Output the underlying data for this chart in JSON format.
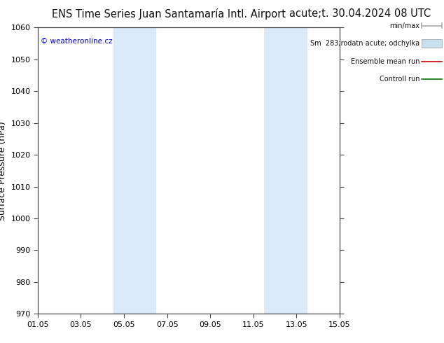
{
  "title_left": "ENS Time Series Juan Santamaría Intl. Airport",
  "title_right": "acute;t. 30.04.2024 08 UTC",
  "ylabel": "Surface Pressure (hPa)",
  "ylim": [
    970,
    1060
  ],
  "yticks": [
    970,
    980,
    990,
    1000,
    1010,
    1020,
    1030,
    1040,
    1050,
    1060
  ],
  "xtick_labels": [
    "01.05",
    "03.05",
    "05.05",
    "07.05",
    "09.05",
    "11.05",
    "13.05",
    "15.05"
  ],
  "xtick_positions": [
    0,
    2,
    4,
    6,
    8,
    10,
    12,
    14
  ],
  "xlim": [
    0,
    14
  ],
  "shaded_regions": [
    {
      "x_start": 3.5,
      "x_end": 5.5,
      "color": "#daeaf8"
    },
    {
      "x_start": 10.5,
      "x_end": 12.5,
      "color": "#daeaf8"
    }
  ],
  "legend_labels": [
    "min/max",
    "Sm  283;rodatn acute; odchylka",
    "Ensemble mean run",
    "Controll run"
  ],
  "legend_line_colors": [
    "#aaaaaa",
    "#c8dff0",
    "#cc0000",
    "#007700"
  ],
  "copyright_text": "© weatheronline.cz",
  "copyright_color": "#0000cc",
  "bg_color": "#ffffff",
  "plot_bg_color": "#ffffff",
  "grid_color": "#bbbbbb",
  "title_fontsize": 10.5,
  "axis_label_fontsize": 9,
  "tick_fontsize": 8
}
